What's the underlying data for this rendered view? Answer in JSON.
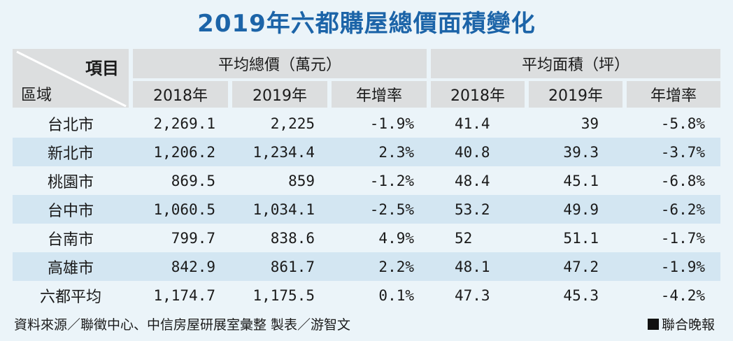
{
  "title": "2019年六都購屋總價面積變化",
  "corner": {
    "item": "項目",
    "area": "區域"
  },
  "groups": {
    "price": "平均總價（萬元）",
    "size": "平均面積（坪）"
  },
  "subheaders": [
    "2018年",
    "2019年",
    "年增率",
    "2018年",
    "2019年",
    "年增率"
  ],
  "rows": [
    {
      "region": "台北市",
      "p2018": "2,269.1",
      "p2019": "2,225",
      "pchg": "-1.9%",
      "s2018": "41.4",
      "s2019": "39",
      "schg": "-5.8%"
    },
    {
      "region": "新北市",
      "p2018": "1,206.2",
      "p2019": "1,234.4",
      "pchg": "2.3%",
      "s2018": "40.8",
      "s2019": "39.3",
      "schg": "-3.7%"
    },
    {
      "region": "桃園市",
      "p2018": "869.5",
      "p2019": "859",
      "pchg": "-1.2%",
      "s2018": "48.4",
      "s2019": "45.1",
      "schg": "-6.8%"
    },
    {
      "region": "台中市",
      "p2018": "1,060.5",
      "p2019": "1,034.1",
      "pchg": "-2.5%",
      "s2018": "53.2",
      "s2019": "49.9",
      "schg": "-6.2%"
    },
    {
      "region": "台南市",
      "p2018": "799.7",
      "p2019": "838.6",
      "pchg": "4.9%",
      "s2018": "52",
      "s2019": "51.1",
      "schg": "-1.7%"
    },
    {
      "region": "高雄市",
      "p2018": "842.9",
      "p2019": "861.7",
      "pchg": "2.2%",
      "s2018": "48.1",
      "s2019": "47.2",
      "schg": "-1.9%"
    },
    {
      "region": "六都平均",
      "p2018": "1,174.7",
      "p2019": "1,175.5",
      "pchg": "0.1%",
      "s2018": "47.3",
      "s2019": "45.3",
      "schg": "-4.2%"
    }
  ],
  "footer": {
    "source": "資料來源／聯徵中心、中信房屋研展室彙整 製表／游智文",
    "publisher": "聯合晚報"
  },
  "colors": {
    "title": "#1c64a8",
    "header_bg": "#dcdedf",
    "alt_row": "#d3e6f2",
    "page_bg": "#ebf4f9"
  }
}
